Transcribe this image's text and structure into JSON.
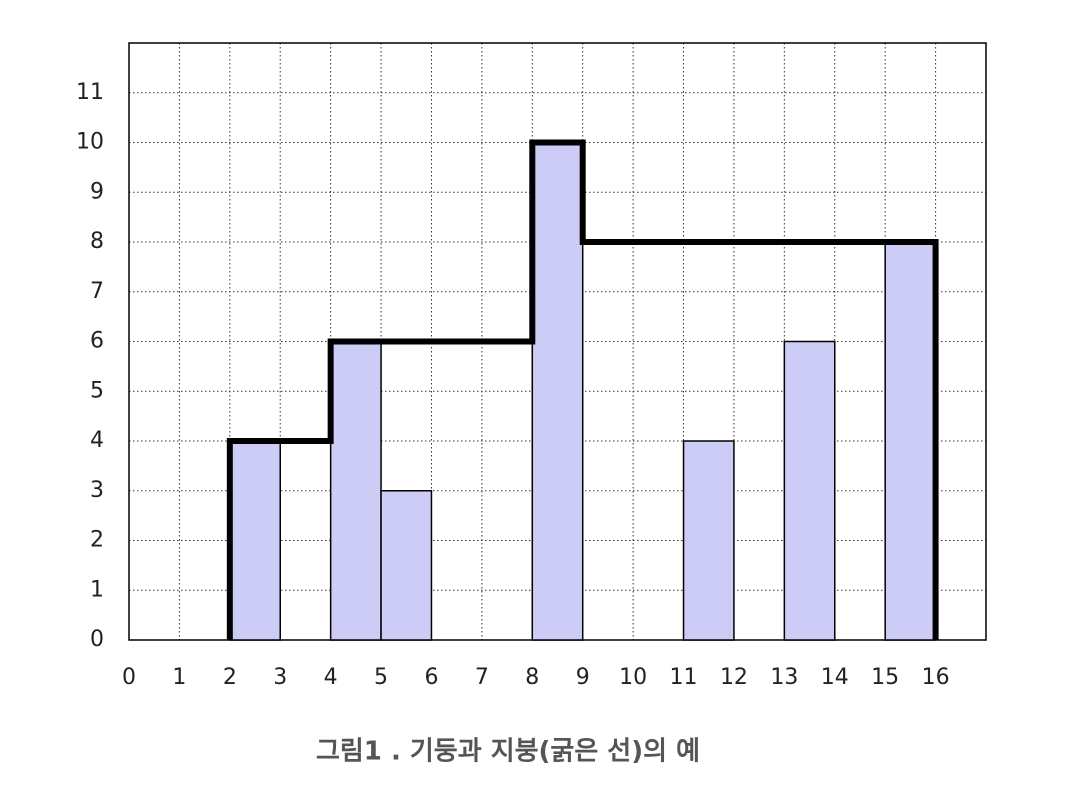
{
  "chart_data": {
    "type": "bar",
    "caption": "그림1 . 기둥과 지붕(굵은 선)의 예",
    "bars": {
      "color": "#ccccf6",
      "x0": [
        2,
        4,
        5,
        8,
        11,
        13,
        15
      ],
      "x1": [
        3,
        5,
        6,
        9,
        12,
        14,
        16
      ],
      "values": [
        4,
        6,
        3,
        10,
        4,
        6,
        8
      ]
    },
    "roof": {
      "color": "#000000",
      "x": [
        2,
        2,
        4,
        4,
        8,
        8,
        9,
        9,
        16,
        16
      ],
      "values": [
        0,
        4,
        4,
        6,
        6,
        10,
        10,
        8,
        8,
        0
      ]
    },
    "xlim": [
      0,
      17
    ],
    "ylim": [
      0,
      12
    ],
    "xticks": [
      0,
      1,
      2,
      3,
      4,
      5,
      6,
      7,
      8,
      9,
      10,
      11,
      12,
      13,
      14,
      15,
      16
    ],
    "yticks": [
      0,
      1,
      2,
      3,
      4,
      5,
      6,
      7,
      8,
      9,
      10,
      11
    ],
    "grid": true
  }
}
